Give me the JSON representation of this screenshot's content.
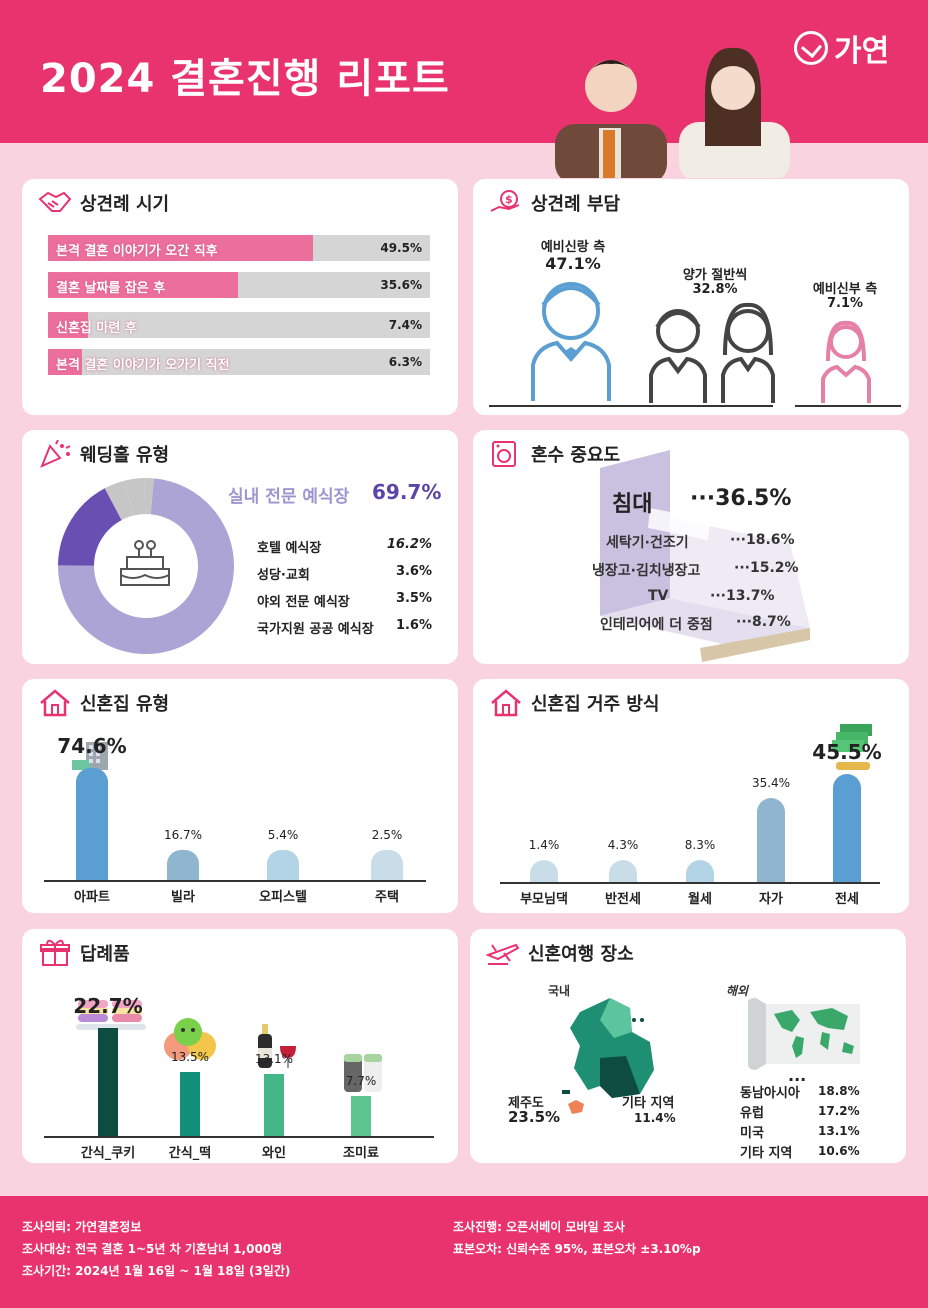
{
  "header": {
    "title": "2024 결혼진행 리포트",
    "brand": "가연",
    "brand_color": "#e8336f"
  },
  "panels": {
    "meeting_timing": "상견례 시기",
    "meeting_cost": "상견례 부담",
    "wedding_hall": "웨딩홀 유형",
    "dowry": "혼수 중요도",
    "house_type": "신혼집 유형",
    "residence": "신혼집 거주 방식",
    "return_gift": "답례품",
    "honeymoon": "신혼여행 장소"
  },
  "chart_data": [
    {
      "id": "meeting_timing",
      "type": "bar",
      "orientation": "horizontal",
      "categories": [
        "본격 결혼 이야기가 오간 직후",
        "결혼 날짜를 잡은 후",
        "신혼집 마련 후",
        "본격 결혼 이야기가 오가기 직전"
      ],
      "values": [
        49.5,
        35.6,
        7.4,
        6.3
      ],
      "value_labels": [
        "49.5%",
        "35.6%",
        "7.4%",
        "6.3%"
      ],
      "xlim": [
        0,
        100
      ]
    },
    {
      "id": "meeting_cost",
      "type": "bar",
      "categories": [
        "예비신랑 측",
        "양가 절반씩",
        "예비신부 측"
      ],
      "values": [
        47.1,
        32.8,
        7.1
      ],
      "value_labels": [
        "47.1%",
        "32.8%",
        "7.1%"
      ]
    },
    {
      "id": "wedding_hall",
      "type": "pie",
      "categories": [
        "실내 전문 예식장",
        "호텔 예식장",
        "성당·교회",
        "야외 전문 예식장",
        "국가지원 공공 예식장"
      ],
      "values": [
        69.7,
        16.2,
        3.6,
        3.5,
        1.6
      ],
      "value_labels": [
        "69.7%",
        "16.2%",
        "3.6%",
        "3.5%",
        "1.6%"
      ],
      "colors": [
        "#ada4d6",
        "#6a4fb3",
        "#c6c6c6",
        "#c6c6c6",
        "#c6c6c6"
      ]
    },
    {
      "id": "dowry",
      "type": "table",
      "categories": [
        "침대",
        "세탁기·건조기",
        "냉장고·김치냉장고",
        "TV",
        "인테리어에 더 중점"
      ],
      "values": [
        36.5,
        18.6,
        15.2,
        13.7,
        8.7
      ],
      "value_labels": [
        "36.5%",
        "18.6%",
        "15.2%",
        "13.7%",
        "8.7%"
      ]
    },
    {
      "id": "house_type",
      "type": "bar",
      "categories": [
        "아파트",
        "빌라",
        "오피스텔",
        "주택"
      ],
      "values": [
        74.6,
        16.7,
        5.4,
        2.5
      ],
      "value_labels": [
        "74.6%",
        "16.7%",
        "5.4%",
        "2.5%"
      ],
      "colors": [
        "#5b9fd2",
        "#8fb5cf",
        "#b3d4e6",
        "#c9dde8"
      ]
    },
    {
      "id": "residence",
      "type": "bar",
      "categories": [
        "부모님댁",
        "반전세",
        "월세",
        "자가",
        "전세"
      ],
      "values": [
        1.4,
        4.3,
        8.3,
        35.4,
        45.5
      ],
      "value_labels": [
        "1.4%",
        "4.3%",
        "8.3%",
        "35.4%",
        "45.5%"
      ],
      "colors": [
        "#c9dde8",
        "#c9dde8",
        "#b3d4e6",
        "#8fb5cf",
        "#5b9fd2"
      ]
    },
    {
      "id": "return_gift",
      "type": "bar",
      "categories": [
        "간식_쿠키",
        "간식_떡",
        "와인",
        "조미료"
      ],
      "values": [
        22.7,
        13.5,
        13.1,
        7.7
      ],
      "value_labels": [
        "22.7%",
        "13.5%",
        "13.1%",
        "7.7%"
      ],
      "colors": [
        "#0d4c3f",
        "#138e78",
        "#45b688",
        "#5cc58f"
      ]
    },
    {
      "id": "honeymoon",
      "type": "table",
      "groups": [
        {
          "name": "국내",
          "categories": [
            "제주도",
            "기타 지역"
          ],
          "values": [
            23.5,
            11.4
          ],
          "value_labels": [
            "23.5%",
            "11.4%"
          ]
        },
        {
          "name": "해외",
          "categories": [
            "동남아시아",
            "유럽",
            "미국",
            "기타 지역"
          ],
          "values": [
            18.8,
            17.2,
            13.1,
            10.6
          ],
          "value_labels": [
            "18.8%",
            "17.2%",
            "13.1%",
            "10.6%"
          ]
        }
      ]
    }
  ],
  "footer": {
    "left": [
      "조사의뢰: 가연결혼정보",
      "조사대상: 전국 결혼 1~5년 차 기혼남녀 1,000명",
      "조사기간: 2024년 1월 16일 ~ 1월 18일 (3일간)"
    ],
    "right": [
      "조사진행: 오픈서베이 모바일 조사",
      "표본오차: 신뢰수준 95%, 표본오차 ±3.10%p"
    ]
  }
}
